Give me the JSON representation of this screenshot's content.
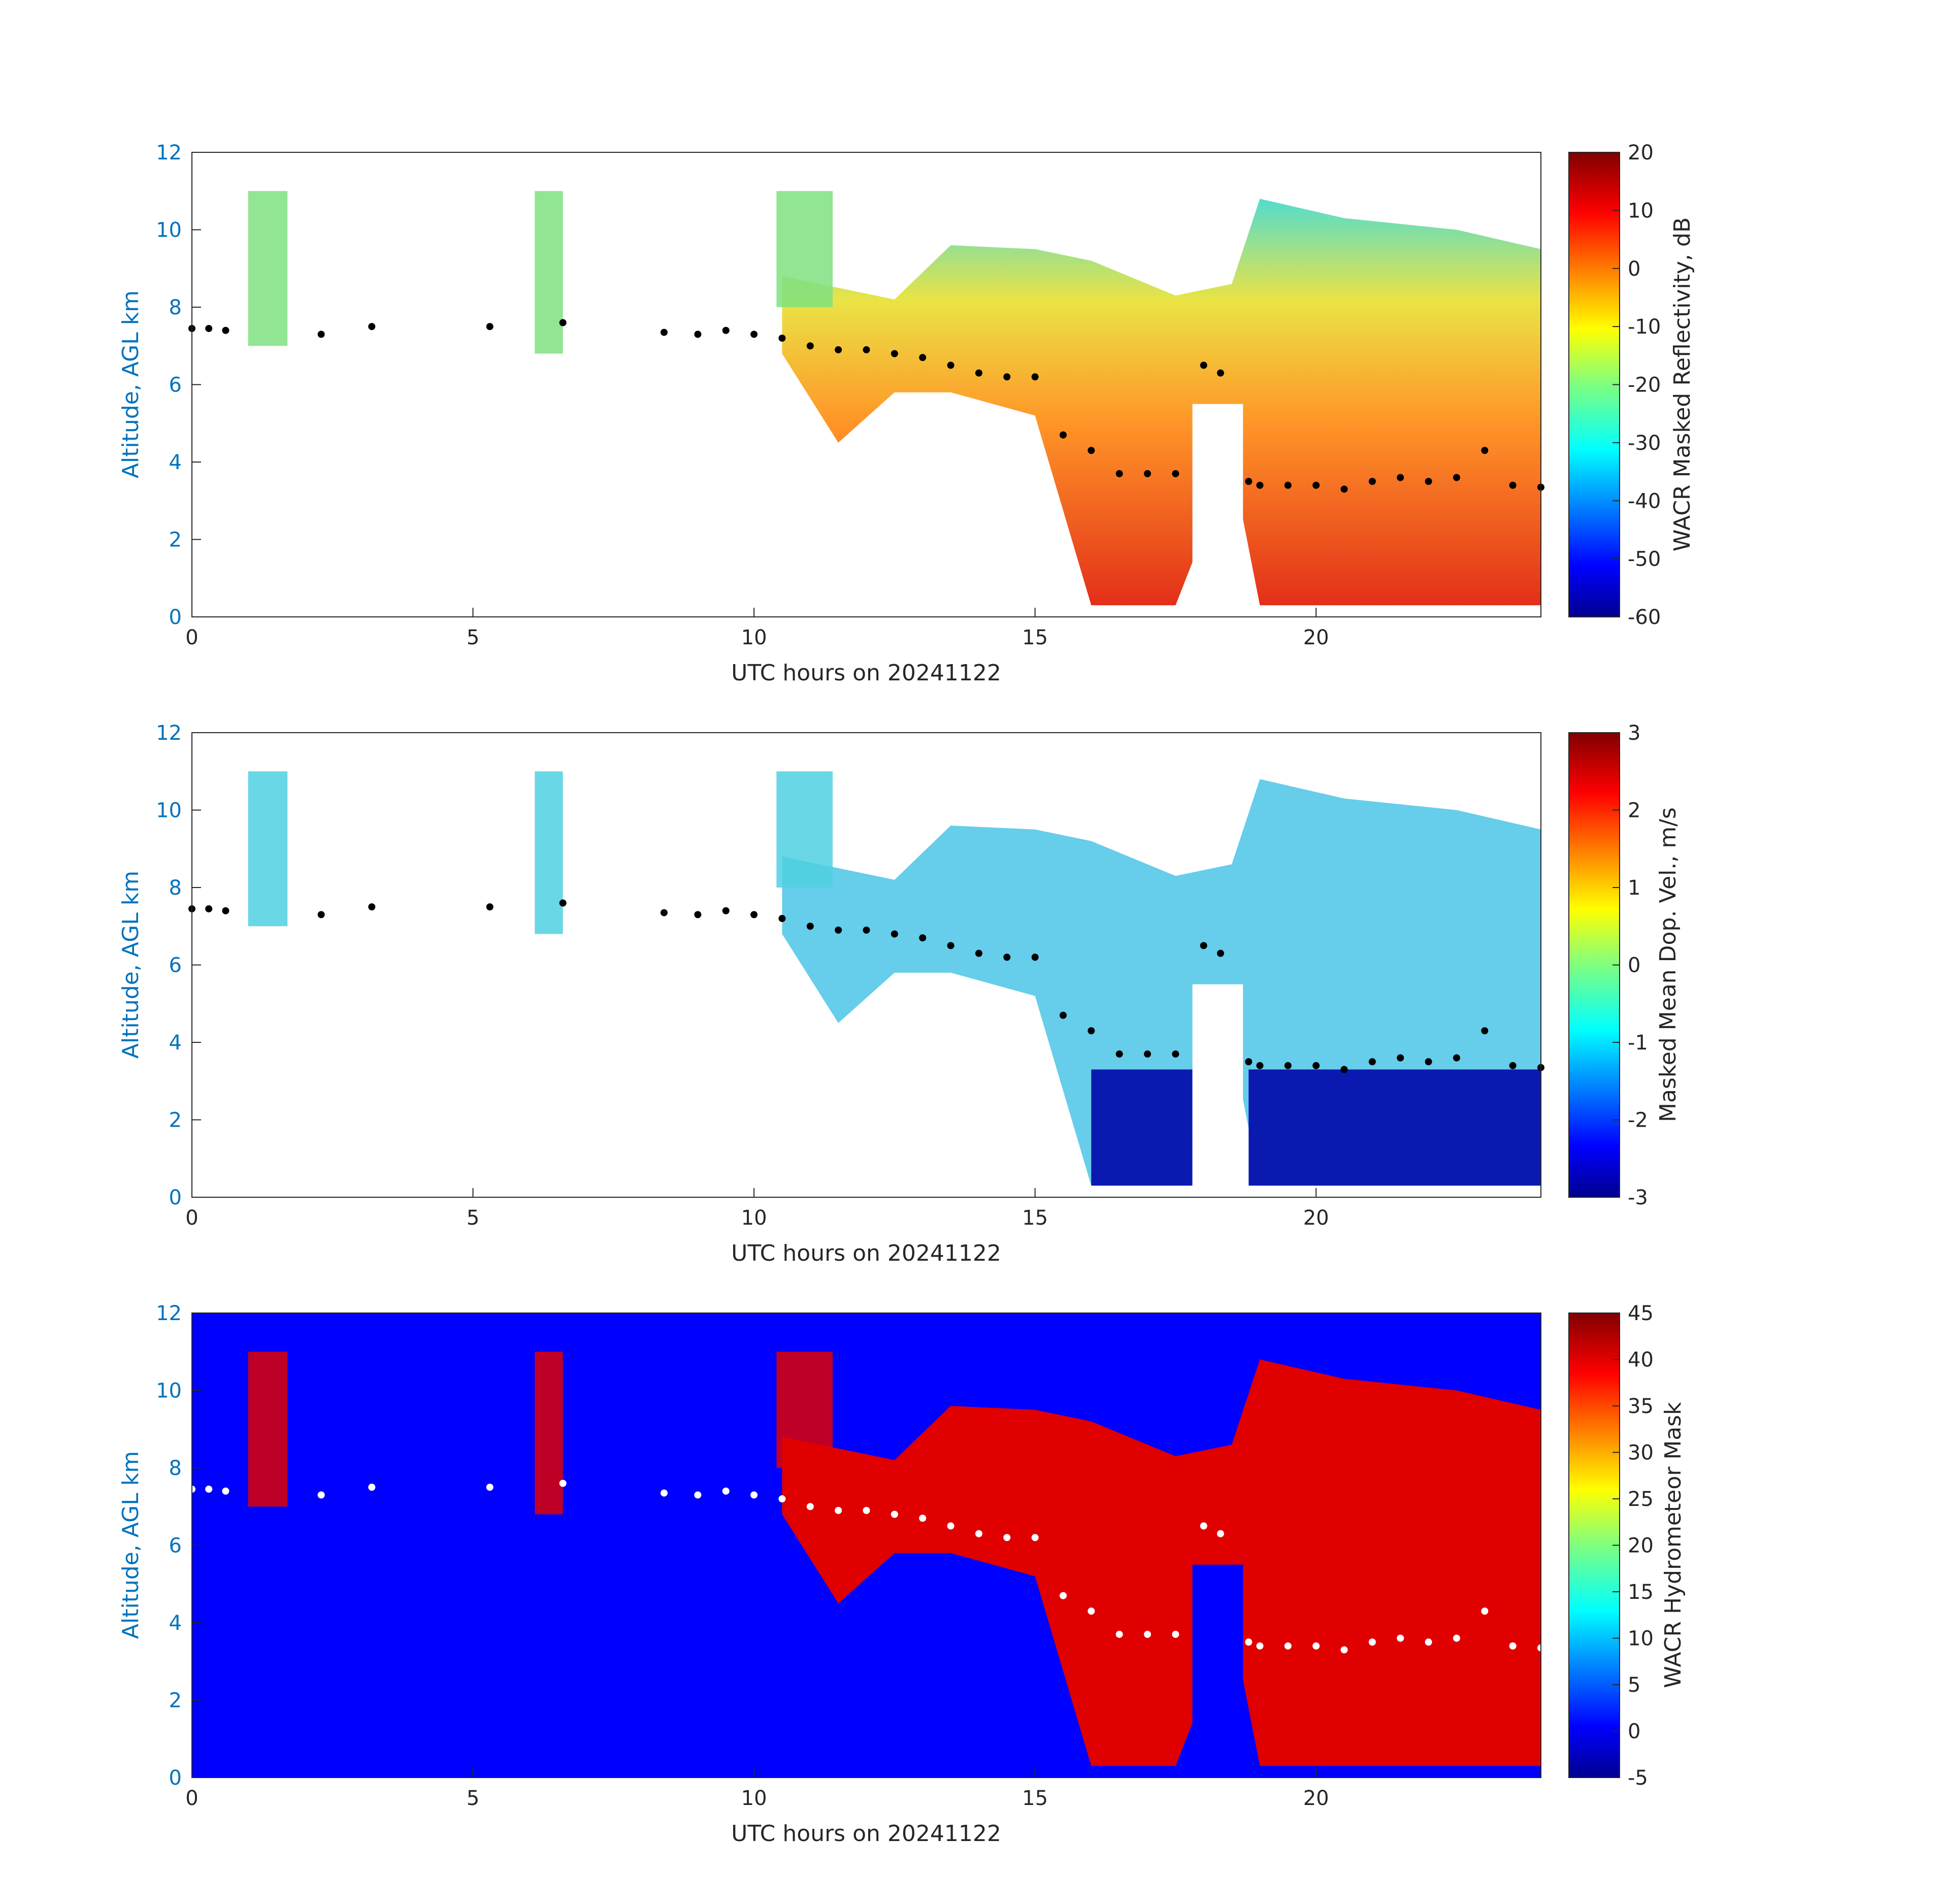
{
  "chart_data": [
    {
      "type": "heatmap",
      "panel": "reflectivity",
      "xlabel": "UTC hours on 20241122",
      "ylabel": "Altitude, AGL km",
      "xlim": [
        0,
        24
      ],
      "ylim": [
        0,
        12
      ],
      "x_ticks": [
        "0",
        "5",
        "10",
        "15",
        "20"
      ],
      "y_ticks": [
        "0",
        "2",
        "4",
        "6",
        "8",
        "10",
        "12"
      ],
      "colorbar": {
        "label": "WACR Masked Reflectivity, dB",
        "range": [
          -60,
          20
        ],
        "ticks": [
          "-60",
          "-50",
          "-40",
          "-30",
          "-20",
          "-10",
          "0",
          "10",
          "20"
        ],
        "colormap": "jet"
      },
      "cloud_top_dots": [
        {
          "hours": [
            0.0,
            0.3,
            0.6,
            2.3,
            3.2,
            5.3,
            6.6,
            8.4,
            9.0,
            9.5,
            10.0,
            10.5,
            11.0,
            11.5,
            12.0,
            12.5,
            13.0,
            13.5,
            14.0,
            14.5,
            15.0,
            15.5,
            16.0,
            16.5,
            17.0,
            17.5,
            18.0,
            18.3,
            18.8,
            19.0,
            19.5,
            20.0,
            20.5,
            21.0,
            21.5,
            22.0,
            22.5,
            23.0,
            23.5,
            24.0
          ],
          "altitude_km": [
            7.45,
            7.45,
            7.4,
            7.3,
            7.5,
            7.5,
            7.6,
            7.35,
            7.3,
            7.4,
            7.3,
            7.2,
            7.0,
            6.9,
            6.9,
            6.8,
            6.7,
            6.5,
            6.3,
            6.2,
            6.2,
            4.7,
            4.3,
            3.7,
            3.7,
            3.7,
            6.5,
            6.3,
            3.5,
            3.4,
            3.4,
            3.4,
            3.3,
            3.5,
            3.6,
            3.5,
            3.6,
            4.3,
            3.4,
            3.35
          ]
        }
      ]
    },
    {
      "type": "heatmap",
      "panel": "doppler-velocity",
      "xlabel": "UTC hours on 20241122",
      "ylabel": "Altitude, AGL km",
      "xlim": [
        0,
        24
      ],
      "ylim": [
        0,
        12
      ],
      "x_ticks": [
        "0",
        "5",
        "10",
        "15",
        "20"
      ],
      "y_ticks": [
        "0",
        "2",
        "4",
        "6",
        "8",
        "10",
        "12"
      ],
      "colorbar": {
        "label": "Masked Mean Dop. Vel., m/s",
        "range": [
          -3,
          3
        ],
        "ticks": [
          "-3",
          "-2",
          "-1",
          "0",
          "1",
          "2",
          "3"
        ],
        "colormap": "jet"
      }
    },
    {
      "type": "heatmap",
      "panel": "hydrometeor-mask",
      "xlabel": "UTC hours on 20241122",
      "ylabel": "Altitude, AGL km",
      "xlim": [
        0,
        24
      ],
      "ylim": [
        0,
        12
      ],
      "x_ticks": [
        "0",
        "5",
        "10",
        "15",
        "20"
      ],
      "y_ticks": [
        "0",
        "2",
        "4",
        "6",
        "8",
        "10",
        "12"
      ],
      "colorbar": {
        "label": "WACR Hydrometeor Mask",
        "range": [
          -5,
          45
        ],
        "ticks": [
          "-5",
          "0",
          "5",
          "10",
          "15",
          "20",
          "25",
          "30",
          "35",
          "40",
          "45"
        ],
        "colormap": "jet"
      }
    }
  ],
  "cloud_mass": {
    "upper_profile": [
      {
        "hour": 10.5,
        "top_km": 8.8,
        "bottom_km": 6.8
      },
      {
        "hour": 11.5,
        "top_km": 8.5,
        "bottom_km": 4.5
      },
      {
        "hour": 12.5,
        "top_km": 8.2,
        "bottom_km": 5.8
      },
      {
        "hour": 13.5,
        "top_km": 9.6,
        "bottom_km": 5.8
      },
      {
        "hour": 15.0,
        "top_km": 9.5,
        "bottom_km": 5.2
      },
      {
        "hour": 16.0,
        "top_km": 9.2,
        "bottom_km": 0.3
      },
      {
        "hour": 17.5,
        "top_km": 8.3,
        "bottom_km": 0.3
      },
      {
        "hour": 18.5,
        "top_km": 8.6,
        "bottom_km": 4.0
      },
      {
        "hour": 19.0,
        "top_km": 10.8,
        "bottom_km": 0.3
      },
      {
        "hour": 20.5,
        "top_km": 10.3,
        "bottom_km": 0.3
      },
      {
        "hour": 22.5,
        "top_km": 10.0,
        "bottom_km": 0.3
      },
      {
        "hour": 24.0,
        "top_km": 9.5,
        "bottom_km": 0.3
      }
    ]
  }
}
